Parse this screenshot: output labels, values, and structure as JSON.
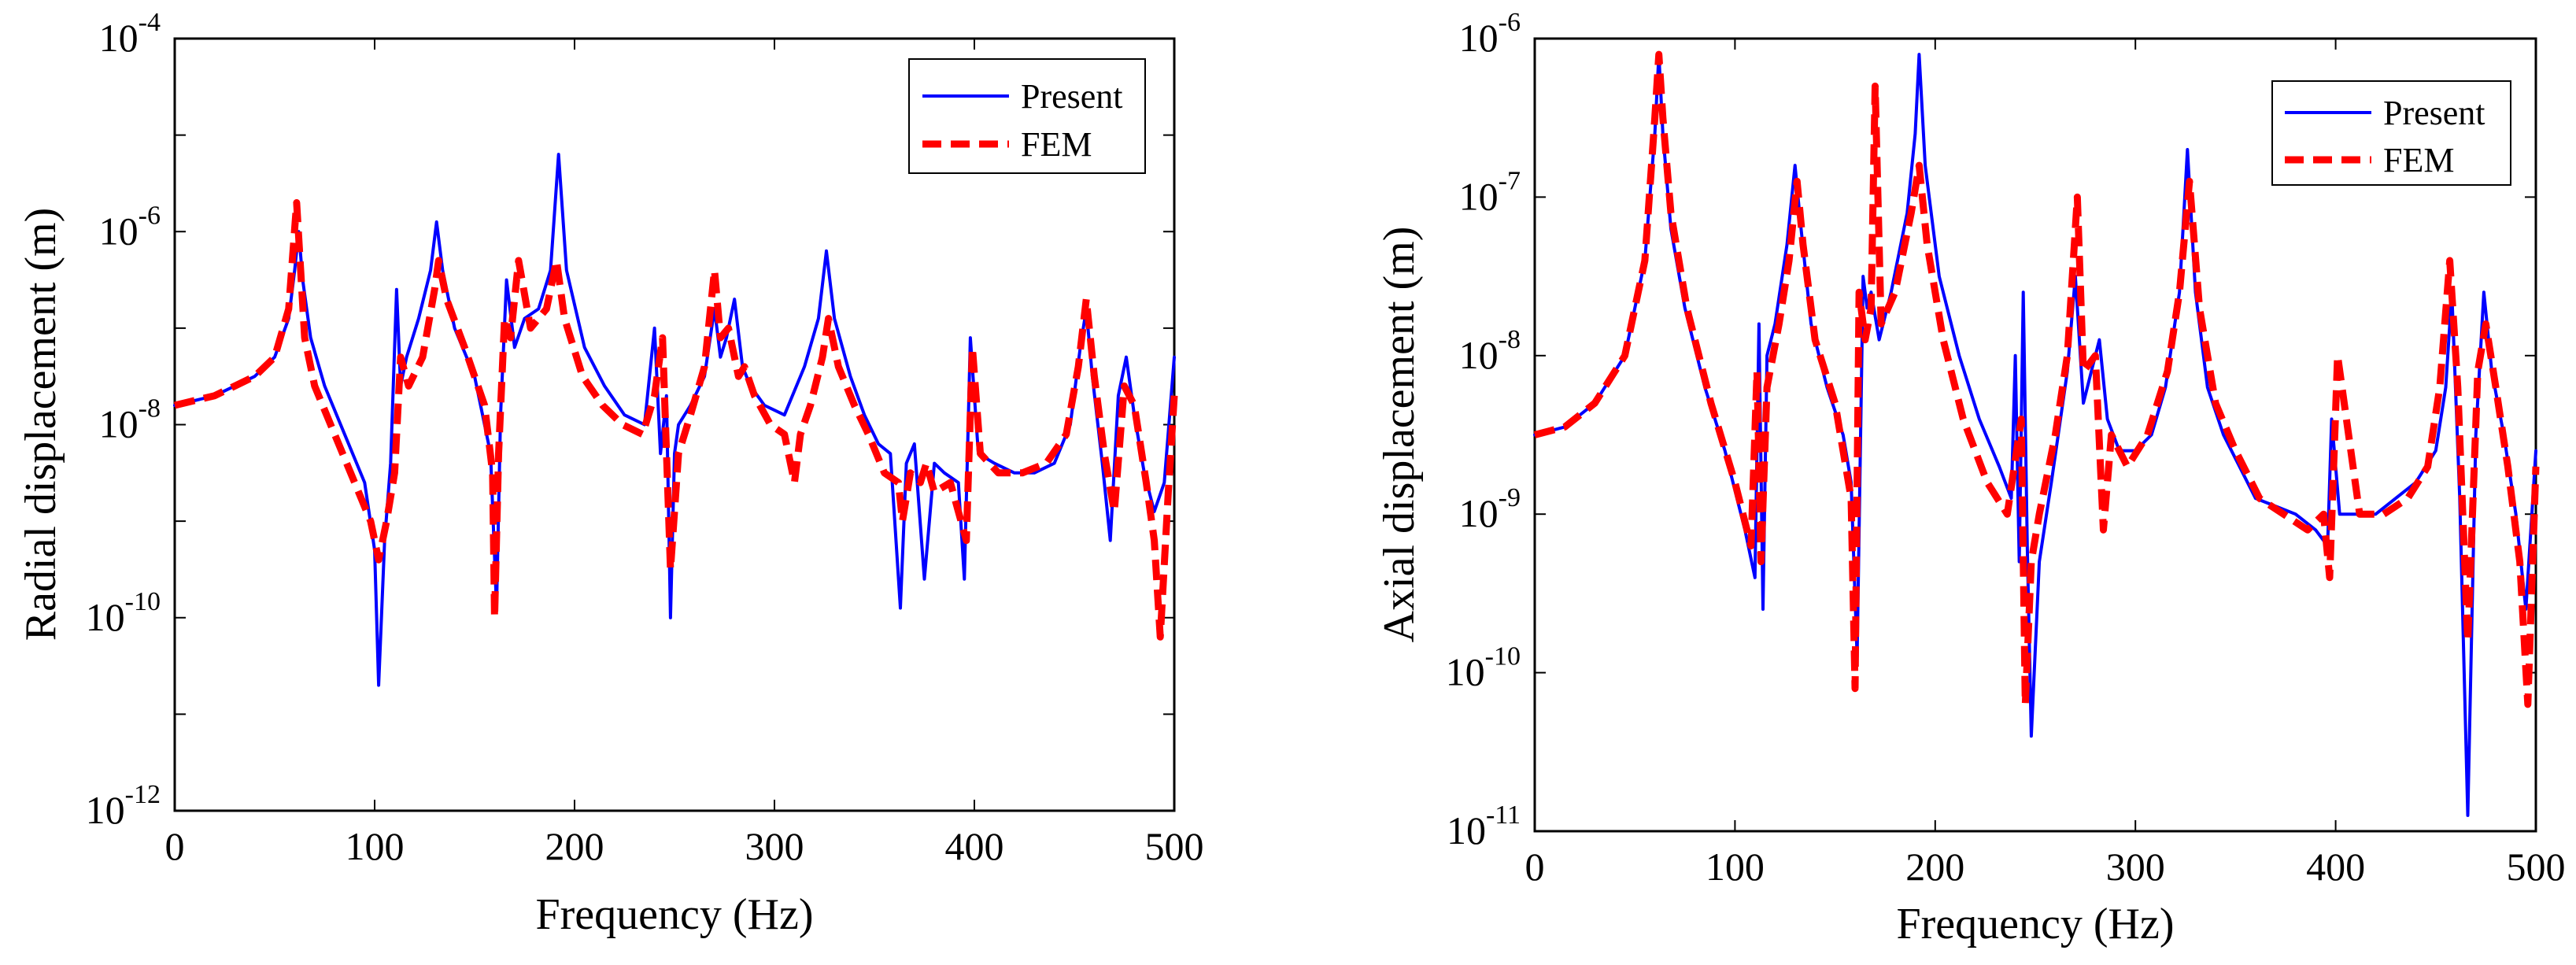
{
  "chart_data": [
    {
      "type": "line",
      "yscale": "log",
      "xlabel": "Frequency (Hz)",
      "ylabel": "Radial displacement (m)",
      "xlim": [
        0,
        500
      ],
      "ylim_exponent": [
        -12,
        -4
      ],
      "xticks": [
        "0",
        "100",
        "200",
        "300",
        "400",
        "500"
      ],
      "yticks": [
        {
          "base": "10",
          "exp": "-12"
        },
        {
          "base": "10",
          "exp": "-10"
        },
        {
          "base": "10",
          "exp": "-8"
        },
        {
          "base": "10",
          "exp": "-6"
        },
        {
          "base": "10",
          "exp": "-4"
        }
      ],
      "legend_position": "top-right",
      "series": [
        {
          "name": "Present",
          "color": "#0000ff",
          "style": "solid",
          "x": [
            0,
            20,
            40,
            50,
            57,
            60,
            62,
            64,
            68,
            75,
            85,
            95,
            100,
            102,
            105,
            108,
            111,
            113,
            116,
            122,
            128,
            131,
            134,
            140,
            150,
            158,
            161,
            163,
            166,
            170,
            175,
            182,
            188,
            192,
            196,
            205,
            215,
            225,
            235,
            240,
            243,
            246,
            248,
            250,
            252,
            258,
            265,
            270,
            273,
            276,
            280,
            284,
            288,
            295,
            305,
            315,
            322,
            326,
            330,
            338,
            345,
            352,
            358,
            363,
            366,
            370,
            375,
            380,
            385,
            392,
            395,
            398,
            402,
            410,
            420,
            430,
            440,
            448,
            453,
            456,
            459,
            464,
            468,
            472,
            476,
            480,
            485,
            490,
            495,
            500
          ],
          "y_exp": [
            -7.8,
            -7.7,
            -7.5,
            -7.3,
            -6.9,
            -6.4,
            -6.0,
            -6.5,
            -7.1,
            -7.6,
            -8.1,
            -8.6,
            -9.3,
            -10.7,
            -9.2,
            -8.4,
            -6.6,
            -7.6,
            -7.3,
            -6.9,
            -6.4,
            -5.9,
            -6.4,
            -7.0,
            -7.5,
            -8.3,
            -9.9,
            -7.9,
            -6.5,
            -7.2,
            -6.9,
            -6.8,
            -6.4,
            -5.2,
            -6.4,
            -7.2,
            -7.6,
            -7.9,
            -8.0,
            -7.0,
            -8.3,
            -7.7,
            -10.0,
            -8.3,
            -8.0,
            -7.8,
            -7.5,
            -6.8,
            -7.3,
            -7.1,
            -6.7,
            -7.4,
            -7.6,
            -7.8,
            -7.9,
            -7.4,
            -6.9,
            -6.2,
            -6.9,
            -7.5,
            -7.9,
            -8.2,
            -8.3,
            -9.9,
            -8.4,
            -8.2,
            -9.6,
            -8.4,
            -8.5,
            -8.6,
            -9.6,
            -7.1,
            -8.3,
            -8.4,
            -8.5,
            -8.5,
            -8.4,
            -8.0,
            -7.2,
            -6.8,
            -7.5,
            -8.4,
            -9.2,
            -7.7,
            -7.3,
            -7.9,
            -8.5,
            -8.9,
            -8.6,
            -7.3
          ]
        },
        {
          "name": "FEM",
          "color": "#ff0000",
          "style": "dashed",
          "x": [
            0,
            20,
            40,
            50,
            57,
            61,
            63,
            65,
            70,
            80,
            90,
            98,
            102,
            106,
            110,
            113,
            117,
            124,
            130,
            132,
            136,
            145,
            155,
            159,
            160,
            162,
            165,
            168,
            172,
            178,
            186,
            191,
            195,
            204,
            214,
            224,
            234,
            240,
            244,
            248,
            252,
            258,
            265,
            270,
            273,
            277,
            282,
            285,
            290,
            298,
            305,
            310,
            313,
            318,
            324,
            327,
            332,
            340,
            347,
            355,
            362,
            364,
            368,
            373,
            376,
            380,
            388,
            396,
            399,
            403,
            412,
            424,
            436,
            446,
            452,
            456,
            460,
            465,
            470,
            475,
            480,
            486,
            490,
            493,
            497,
            500
          ],
          "y_exp": [
            -7.8,
            -7.7,
            -7.5,
            -7.3,
            -6.8,
            -5.7,
            -6.4,
            -7.1,
            -7.6,
            -8.1,
            -8.6,
            -9.0,
            -9.4,
            -9.0,
            -8.5,
            -7.3,
            -7.6,
            -7.3,
            -6.6,
            -6.3,
            -6.7,
            -7.2,
            -7.8,
            -8.5,
            -10.0,
            -8.3,
            -6.9,
            -7.1,
            -6.3,
            -7.0,
            -6.8,
            -6.3,
            -6.9,
            -7.5,
            -7.8,
            -8.0,
            -8.1,
            -7.7,
            -7.1,
            -9.5,
            -8.3,
            -7.9,
            -7.4,
            -6.4,
            -7.1,
            -7.0,
            -7.5,
            -7.4,
            -7.7,
            -8.0,
            -8.1,
            -8.6,
            -8.1,
            -7.8,
            -7.3,
            -6.9,
            -7.4,
            -7.8,
            -8.1,
            -8.5,
            -8.6,
            -9.0,
            -8.5,
            -8.6,
            -8.4,
            -8.7,
            -8.6,
            -9.2,
            -7.2,
            -8.3,
            -8.5,
            -8.5,
            -8.4,
            -8.1,
            -7.4,
            -6.7,
            -7.5,
            -8.3,
            -8.9,
            -7.6,
            -7.8,
            -8.6,
            -9.2,
            -10.2,
            -8.7,
            -7.7
          ]
        }
      ]
    },
    {
      "type": "line",
      "yscale": "log",
      "xlabel": "Frequency (Hz)",
      "ylabel": "Axial displacement (m)",
      "xlim": [
        0,
        500
      ],
      "ylim_exponent": [
        -11,
        -6
      ],
      "xticks": [
        "0",
        "100",
        "200",
        "300",
        "400",
        "500"
      ],
      "yticks": [
        {
          "base": "10",
          "exp": "-11"
        },
        {
          "base": "10",
          "exp": "-10"
        },
        {
          "base": "10",
          "exp": "-9"
        },
        {
          "base": "10",
          "exp": "-8"
        },
        {
          "base": "10",
          "exp": "-7"
        },
        {
          "base": "10",
          "exp": "-6"
        }
      ],
      "legend_position": "top-right",
      "series": [
        {
          "name": "Present",
          "color": "#0000ff",
          "style": "solid",
          "x": [
            0,
            15,
            30,
            45,
            55,
            60,
            62,
            64,
            68,
            75,
            85,
            95,
            105,
            110,
            112,
            114,
            116,
            120,
            126,
            130,
            133,
            138,
            146,
            154,
            158,
            161,
            164,
            166,
            168,
            172,
            178,
            186,
            190,
            192,
            195,
            202,
            212,
            222,
            232,
            238,
            240,
            242,
            244,
            246,
            248,
            252,
            258,
            266,
            270,
            274,
            278,
            282,
            286,
            292,
            300,
            308,
            315,
            322,
            326,
            330,
            336,
            344,
            352,
            360,
            370,
            380,
            390,
            396,
            398,
            402,
            410,
            420,
            430,
            440,
            450,
            455,
            458,
            462,
            466,
            470,
            474,
            478,
            484,
            490,
            495,
            500
          ],
          "y_exp": [
            -8.5,
            -8.45,
            -8.3,
            -8.0,
            -7.4,
            -6.6,
            -6.1,
            -6.6,
            -7.2,
            -7.7,
            -8.2,
            -8.6,
            -9.1,
            -9.4,
            -7.8,
            -9.6,
            -8.0,
            -7.8,
            -7.3,
            -6.8,
            -7.2,
            -7.8,
            -8.2,
            -8.5,
            -8.8,
            -9.9,
            -7.5,
            -7.7,
            -7.6,
            -7.9,
            -7.6,
            -7.1,
            -6.6,
            -6.1,
            -6.8,
            -7.5,
            -8.0,
            -8.4,
            -8.7,
            -8.9,
            -8.0,
            -9.3,
            -7.6,
            -9.2,
            -10.4,
            -9.3,
            -8.8,
            -8.1,
            -7.5,
            -8.3,
            -8.1,
            -7.9,
            -8.4,
            -8.6,
            -8.6,
            -8.5,
            -8.2,
            -7.6,
            -6.7,
            -7.6,
            -8.2,
            -8.5,
            -8.7,
            -8.9,
            -8.95,
            -9.0,
            -9.1,
            -9.2,
            -8.4,
            -9.0,
            -9.0,
            -9.0,
            -8.9,
            -8.8,
            -8.6,
            -8.2,
            -7.6,
            -8.9,
            -10.9,
            -8.5,
            -7.6,
            -8.1,
            -8.5,
            -9.0,
            -9.6,
            -8.6
          ]
        },
        {
          "name": "FEM",
          "color": "#ff0000",
          "style": "dashed",
          "x": [
            0,
            15,
            30,
            45,
            55,
            60,
            62,
            64,
            68,
            76,
            88,
            100,
            108,
            111,
            113,
            116,
            122,
            127,
            131,
            134,
            140,
            150,
            158,
            160,
            162,
            165,
            168,
            170,
            173,
            180,
            188,
            192,
            196,
            204,
            214,
            226,
            236,
            243,
            245,
            248,
            252,
            260,
            266,
            271,
            274,
            280,
            284,
            288,
            296,
            306,
            316,
            322,
            327,
            332,
            340,
            350,
            362,
            374,
            386,
            394,
            397,
            401,
            412,
            424,
            436,
            446,
            452,
            457,
            461,
            466,
            471,
            475,
            480,
            486,
            492,
            496,
            500
          ],
          "y_exp": [
            -8.5,
            -8.45,
            -8.3,
            -8.0,
            -7.4,
            -6.5,
            -6.1,
            -6.5,
            -7.1,
            -7.7,
            -8.3,
            -8.8,
            -9.2,
            -8.1,
            -9.3,
            -8.2,
            -7.8,
            -7.4,
            -6.9,
            -7.3,
            -7.9,
            -8.3,
            -8.9,
            -10.1,
            -7.6,
            -7.9,
            -7.7,
            -6.3,
            -7.8,
            -7.6,
            -7.1,
            -6.8,
            -7.3,
            -7.9,
            -8.4,
            -8.8,
            -9.0,
            -8.4,
            -10.2,
            -9.3,
            -9.0,
            -8.5,
            -8.0,
            -7.0,
            -8.1,
            -8.0,
            -9.1,
            -8.5,
            -8.7,
            -8.5,
            -8.1,
            -7.6,
            -6.9,
            -7.7,
            -8.3,
            -8.6,
            -8.9,
            -9.0,
            -9.1,
            -9.0,
            -9.4,
            -8.0,
            -9.0,
            -9.0,
            -8.9,
            -8.7,
            -8.2,
            -7.4,
            -8.2,
            -9.8,
            -8.1,
            -7.8,
            -8.2,
            -8.7,
            -9.3,
            -10.2,
            -8.7
          ]
        }
      ]
    }
  ]
}
